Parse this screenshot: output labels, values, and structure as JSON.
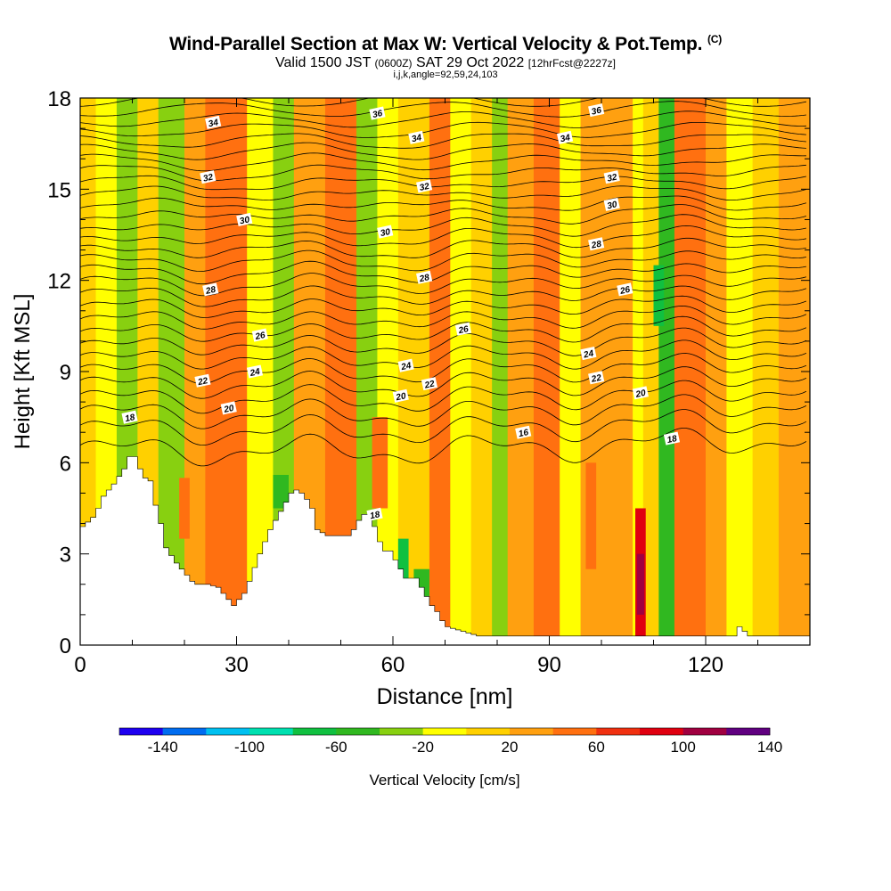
{
  "header": {
    "title": "Wind-Parallel Section at Max W: Vertical Velocity & Pot.Temp.",
    "copyright_mark": "(C)",
    "subtitle_a": "Valid 1500 JST",
    "subtitle_zulu": "(0600Z)",
    "subtitle_b": "SAT 29 Oct 2022",
    "subtitle_fcst": "[12hrFcst@2227z]",
    "params": "i,j,k,angle=92,59,24,103"
  },
  "chart_data": {
    "type": "heatmap",
    "xlabel": "Distance [nm]",
    "ylabel": "Height [Kft MSL]",
    "xlim": [
      0,
      140
    ],
    "ylim": [
      0,
      18
    ],
    "x_ticks": [
      0,
      30,
      60,
      90,
      120
    ],
    "y_ticks": [
      0,
      3,
      6,
      9,
      12,
      15,
      18
    ],
    "colorbar": {
      "label": "Vertical Velocity [cm/s]",
      "tick_labels": [
        -140,
        -100,
        -60,
        -20,
        20,
        60,
        100,
        140
      ],
      "colors": [
        "#1e00f0",
        "#006cf0",
        "#00c0f0",
        "#00e0b0",
        "#10c040",
        "#30b820",
        "#88d010",
        "#ffff00",
        "#ffd000",
        "#ffa010",
        "#ff7010",
        "#f03010",
        "#e00010",
        "#a00040",
        "#600080"
      ]
    },
    "vv_columns": [
      {
        "x": 0,
        "w": 3,
        "v": 15
      },
      {
        "x": 3,
        "w": 4,
        "v": -10
      },
      {
        "x": 7,
        "w": 4,
        "v": -25
      },
      {
        "x": 11,
        "w": 4,
        "v": 5
      },
      {
        "x": 15,
        "w": 5,
        "v": -30
      },
      {
        "x": 20,
        "w": 4,
        "v": 25
      },
      {
        "x": 24,
        "w": 8,
        "v": 40
      },
      {
        "x": 32,
        "w": 5,
        "v": -15
      },
      {
        "x": 37,
        "w": 4,
        "v": -40
      },
      {
        "x": 41,
        "w": 6,
        "v": 20
      },
      {
        "x": 47,
        "w": 6,
        "v": 45
      },
      {
        "x": 53,
        "w": 4,
        "v": -30
      },
      {
        "x": 57,
        "w": 4,
        "v": -20
      },
      {
        "x": 61,
        "w": 6,
        "v": 15
      },
      {
        "x": 67,
        "w": 4,
        "v": 55
      },
      {
        "x": 71,
        "w": 4,
        "v": -20
      },
      {
        "x": 75,
        "w": 4,
        "v": 10
      },
      {
        "x": 79,
        "w": 3,
        "v": -35
      },
      {
        "x": 82,
        "w": 5,
        "v": 20
      },
      {
        "x": 87,
        "w": 5,
        "v": 50
      },
      {
        "x": 92,
        "w": 4,
        "v": -10
      },
      {
        "x": 96,
        "w": 5,
        "v": 20
      },
      {
        "x": 101,
        "w": 5,
        "v": 35
      },
      {
        "x": 106,
        "w": 2,
        "v": -15
      },
      {
        "x": 108,
        "w": 3,
        "v": 10
      },
      {
        "x": 111,
        "w": 3,
        "v": -45
      },
      {
        "x": 114,
        "w": 6,
        "v": 40
      },
      {
        "x": 120,
        "w": 4,
        "v": 20
      },
      {
        "x": 124,
        "w": 5,
        "v": -10
      },
      {
        "x": 129,
        "w": 5,
        "v": 15
      },
      {
        "x": 134,
        "w": 6,
        "v": 25
      }
    ],
    "vv_cells": [
      {
        "x0": 19,
        "x1": 21,
        "y0": 3.5,
        "y1": 5.5,
        "v": 45
      },
      {
        "x0": 56,
        "x1": 59,
        "y0": 4.5,
        "y1": 7.5,
        "v": 55
      },
      {
        "x0": 97,
        "x1": 99,
        "y0": 2.5,
        "y1": 6.0,
        "v": 55
      },
      {
        "x0": 106.5,
        "x1": 108.5,
        "y0": 0.3,
        "y1": 4.5,
        "v": 95
      },
      {
        "x0": 106.8,
        "x1": 108.2,
        "y0": 1.0,
        "y1": 3.0,
        "v": 110
      },
      {
        "x0": 61,
        "x1": 63,
        "y0": 1.5,
        "y1": 3.5,
        "v": -70
      },
      {
        "x0": 64,
        "x1": 67,
        "y0": 1.0,
        "y1": 2.5,
        "v": -45
      },
      {
        "x0": 110,
        "x1": 112,
        "y0": 10.5,
        "y1": 12.5,
        "v": -70
      },
      {
        "x0": 37,
        "x1": 40,
        "y0": 4.5,
        "y1": 5.6,
        "v": -55
      }
    ],
    "terrain": {
      "x": [
        0,
        2,
        3,
        4,
        6,
        8,
        9,
        10,
        11,
        12,
        13,
        14,
        15,
        16,
        18,
        20,
        21,
        22,
        24,
        26,
        27,
        28,
        29,
        30,
        31,
        32,
        34,
        36,
        38,
        40,
        41,
        42,
        43,
        44,
        45,
        47,
        48,
        49,
        50,
        51,
        52,
        53,
        54,
        55,
        56,
        57,
        58,
        59,
        60,
        61,
        62,
        63,
        64,
        65,
        66,
        67,
        68,
        69,
        70,
        72,
        74,
        76,
        78,
        80,
        85,
        90,
        95,
        100,
        105,
        110,
        115,
        120,
        125,
        126,
        128,
        130,
        135,
        140
      ],
      "h": [
        3.9,
        4.2,
        4.5,
        4.9,
        5.3,
        5.8,
        6.2,
        6.2,
        5.8,
        5.5,
        5.4,
        4.6,
        4.0,
        3.2,
        2.7,
        2.3,
        2.1,
        2.0,
        2.0,
        1.9,
        1.7,
        1.5,
        1.3,
        1.5,
        1.7,
        2.1,
        3.0,
        3.8,
        4.4,
        5.0,
        5.1,
        5.0,
        4.8,
        4.5,
        3.8,
        3.6,
        3.6,
        3.6,
        3.6,
        3.6,
        3.8,
        4.1,
        4.3,
        4.3,
        3.9,
        3.4,
        3.1,
        3.1,
        2.8,
        2.5,
        2.2,
        2.2,
        2.2,
        1.9,
        1.6,
        1.3,
        1.1,
        0.8,
        0.6,
        0.5,
        0.4,
        0.3,
        0.3,
        0.3,
        0.3,
        0.3,
        0.3,
        0.3,
        0.3,
        0.3,
        0.3,
        0.3,
        0.3,
        0.6,
        0.3,
        0.3,
        0.3,
        0.3
      ]
    },
    "pot_temp_contours": {
      "interval": 1,
      "levels_from": 7,
      "levels_to": 37,
      "labels": [
        {
          "text": "34",
          "x": 25.5,
          "y": 17.2
        },
        {
          "text": "32",
          "x": 24.5,
          "y": 15.4
        },
        {
          "text": "30",
          "x": 31.5,
          "y": 14.0
        },
        {
          "text": "28",
          "x": 25,
          "y": 11.7
        },
        {
          "text": "26",
          "x": 34.5,
          "y": 10.2
        },
        {
          "text": "24",
          "x": 33.5,
          "y": 9.0
        },
        {
          "text": "22",
          "x": 23.5,
          "y": 8.7
        },
        {
          "text": "20",
          "x": 28.5,
          "y": 7.8
        },
        {
          "text": "18",
          "x": 9.5,
          "y": 7.5
        },
        {
          "text": "36",
          "x": 57,
          "y": 17.5
        },
        {
          "text": "34",
          "x": 64.5,
          "y": 16.7
        },
        {
          "text": "32",
          "x": 66,
          "y": 15.1
        },
        {
          "text": "30",
          "x": 58.5,
          "y": 13.6
        },
        {
          "text": "28",
          "x": 66,
          "y": 12.1
        },
        {
          "text": "26",
          "x": 73.5,
          "y": 10.4
        },
        {
          "text": "24",
          "x": 62.5,
          "y": 9.2
        },
        {
          "text": "22",
          "x": 67,
          "y": 8.6
        },
        {
          "text": "20",
          "x": 61.5,
          "y": 8.2
        },
        {
          "text": "18",
          "x": 56.5,
          "y": 4.3
        },
        {
          "text": "16",
          "x": 85,
          "y": 7.0
        },
        {
          "text": "36",
          "x": 99,
          "y": 17.6
        },
        {
          "text": "34",
          "x": 93,
          "y": 16.7
        },
        {
          "text": "32",
          "x": 102,
          "y": 15.4
        },
        {
          "text": "30",
          "x": 102,
          "y": 14.5
        },
        {
          "text": "28",
          "x": 99,
          "y": 13.2
        },
        {
          "text": "26",
          "x": 104.5,
          "y": 11.7
        },
        {
          "text": "24",
          "x": 97.5,
          "y": 9.6
        },
        {
          "text": "22",
          "x": 99,
          "y": 8.8
        },
        {
          "text": "20",
          "x": 107.5,
          "y": 8.3
        },
        {
          "text": "18",
          "x": 113.5,
          "y": 6.8
        }
      ]
    }
  }
}
